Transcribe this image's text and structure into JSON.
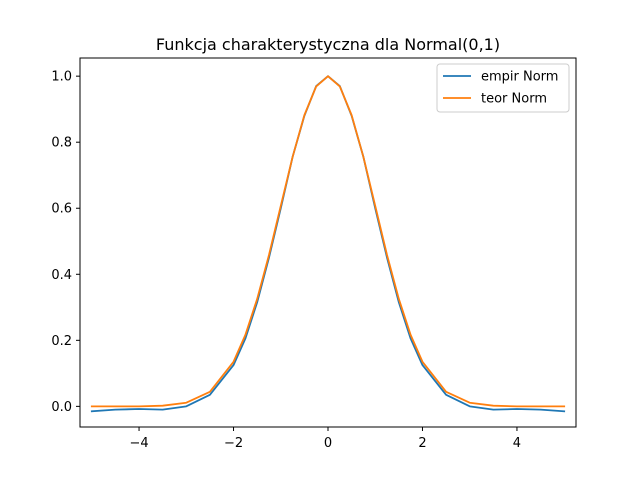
{
  "chart_data": {
    "type": "line",
    "title": "Funkcja charakterystyczna dla Normal(0,1)",
    "xlabel": "",
    "ylabel": "",
    "xlim": [
      -5.25,
      5.25
    ],
    "ylim": [
      -0.0625,
      1.055
    ],
    "xticks": [
      -4,
      -2,
      0,
      2,
      4
    ],
    "xtick_labels": [
      "−4",
      "−2",
      "0",
      "2",
      "4"
    ],
    "yticks": [
      0.0,
      0.2,
      0.4,
      0.6,
      0.8,
      1.0
    ],
    "ytick_labels": [
      "0.0",
      "0.2",
      "0.4",
      "0.6",
      "0.8",
      "1.0"
    ],
    "grid": false,
    "legend_position": "top-right",
    "series": [
      {
        "name": "empir Norm",
        "color": "#1f77b4",
        "x": [
          -5.0,
          -4.5,
          -4.0,
          -3.5,
          -3.0,
          -2.5,
          -2.0,
          -1.75,
          -1.5,
          -1.25,
          -1.0,
          -0.75,
          -0.5,
          -0.25,
          0.0,
          0.25,
          0.5,
          0.75,
          1.0,
          1.25,
          1.5,
          1.75,
          2.0,
          2.5,
          3.0,
          3.5,
          4.0,
          4.5,
          5.0
        ],
        "y": [
          -0.015,
          -0.01,
          -0.008,
          -0.01,
          0.0,
          0.035,
          0.125,
          0.205,
          0.315,
          0.45,
          0.6,
          0.755,
          0.88,
          0.97,
          1.0,
          0.97,
          0.88,
          0.755,
          0.6,
          0.45,
          0.315,
          0.205,
          0.125,
          0.035,
          0.0,
          -0.01,
          -0.008,
          -0.01,
          -0.015
        ]
      },
      {
        "name": "teor Norm",
        "color": "#ff7f0e",
        "x": [
          -5.0,
          -4.5,
          -4.0,
          -3.5,
          -3.0,
          -2.5,
          -2.0,
          -1.75,
          -1.5,
          -1.25,
          -1.0,
          -0.75,
          -0.5,
          -0.25,
          0.0,
          0.25,
          0.5,
          0.75,
          1.0,
          1.25,
          1.5,
          1.75,
          2.0,
          2.5,
          3.0,
          3.5,
          4.0,
          4.5,
          5.0
        ],
        "y": [
          0.0,
          0.0,
          0.0,
          0.002,
          0.011,
          0.044,
          0.135,
          0.216,
          0.325,
          0.458,
          0.607,
          0.755,
          0.882,
          0.969,
          1.0,
          0.969,
          0.882,
          0.755,
          0.607,
          0.458,
          0.325,
          0.216,
          0.135,
          0.044,
          0.011,
          0.002,
          0.0,
          0.0,
          0.0
        ]
      }
    ]
  }
}
